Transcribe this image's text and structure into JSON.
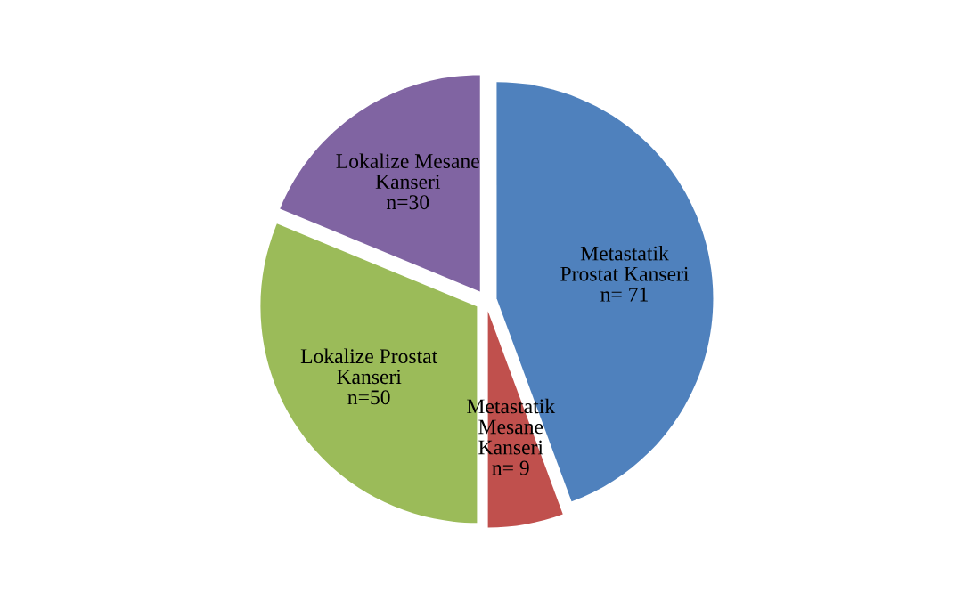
{
  "chart_data": {
    "type": "pie",
    "categories": [
      "Metastatik\nProstat Kanseri",
      "Metastatik\nMesane\nKanseri",
      "Lokalize Prostat\nKanseri",
      "Lokalize Mesane\nKanseri"
    ],
    "values": [
      71,
      9,
      50,
      30
    ],
    "value_labels": [
      "n= 71",
      "n= 9",
      "n=50",
      "n=30"
    ],
    "colors": [
      "#4f81bd",
      "#c0504d",
      "#9bbb59",
      "#8064a2"
    ],
    "legend": false
  }
}
